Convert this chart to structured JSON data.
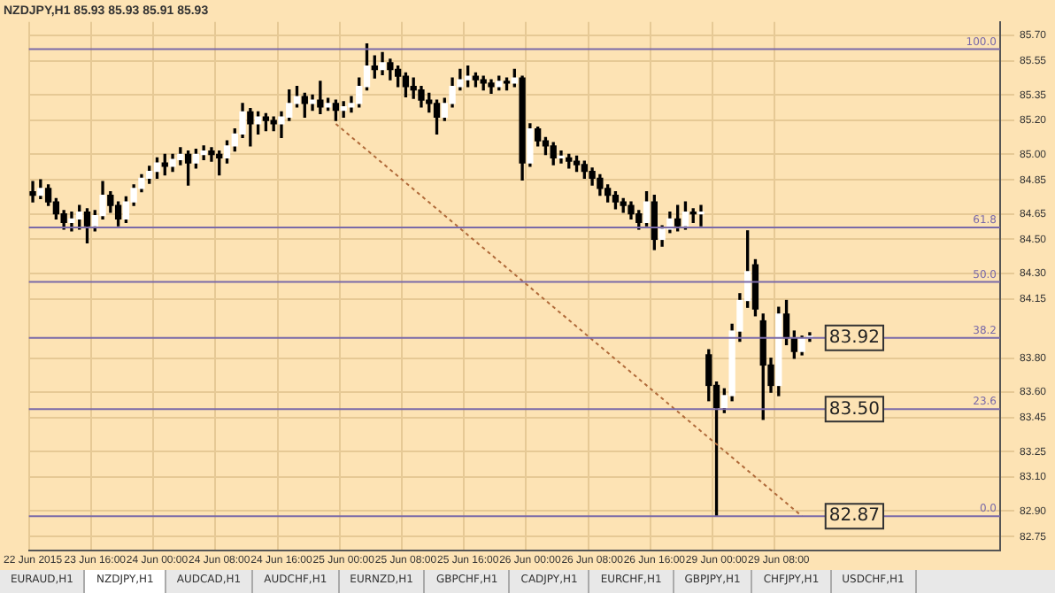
{
  "chart_data": {
    "type": "candlestick",
    "title": "NZDJPY,H1 85.93 85.93 85.91 85.93",
    "categories": [
      "22 Jun 2015",
      null,
      null,
      null,
      null,
      null,
      null,
      null,
      "23 Jun 16:00",
      null,
      null,
      null,
      null,
      null,
      null,
      null,
      "24 Jun 00:00",
      null,
      null,
      null,
      null,
      null,
      null,
      null,
      "24 Jun 08:00",
      null,
      null,
      null,
      null,
      null,
      null,
      null,
      "24 Jun 16:00",
      null,
      null,
      null,
      null,
      null,
      null,
      null,
      "25 Jun 00:00",
      null,
      null,
      null,
      null,
      null,
      null,
      null,
      "25 Jun 08:00",
      null,
      null,
      null,
      null,
      null,
      null,
      null,
      "25 Jun 16:00",
      null,
      null,
      null,
      null,
      null,
      null,
      null,
      "26 Jun 00:00",
      null,
      null,
      null,
      null,
      null,
      null,
      null,
      "26 Jun 08:00",
      null,
      null,
      null,
      null,
      null,
      null,
      null,
      "26 Jun 16:00",
      null,
      null,
      null,
      null,
      null,
      null,
      null,
      "29 Jun 00:00",
      null,
      null,
      null,
      null,
      null,
      null,
      null,
      "29 Jun 08:00",
      null,
      null,
      null,
      null,
      null,
      null,
      null,
      null,
      null,
      null,
      null,
      null,
      null,
      null,
      null,
      null,
      null,
      null,
      null,
      null,
      null,
      null,
      null,
      null,
      null,
      null,
      null,
      null
    ],
    "ohlc": [
      [
        84.78,
        84.84,
        84.72,
        84.76
      ],
      [
        84.76,
        84.85,
        84.74,
        84.8
      ],
      [
        84.8,
        84.82,
        84.7,
        84.72
      ],
      [
        84.72,
        84.74,
        84.62,
        84.65
      ],
      [
        84.65,
        84.67,
        84.56,
        84.6
      ],
      [
        84.6,
        84.66,
        84.55,
        84.62
      ],
      [
        84.62,
        84.7,
        84.56,
        84.66
      ],
      [
        84.66,
        84.68,
        84.48,
        84.58
      ],
      [
        84.58,
        84.67,
        84.55,
        84.64
      ],
      [
        84.64,
        84.84,
        84.62,
        84.76
      ],
      [
        84.76,
        84.78,
        84.66,
        84.7
      ],
      [
        84.7,
        84.72,
        84.58,
        84.62
      ],
      [
        84.62,
        84.75,
        84.6,
        84.72
      ],
      [
        84.72,
        84.82,
        84.7,
        84.8
      ],
      [
        84.8,
        84.88,
        84.78,
        84.86
      ],
      [
        84.86,
        84.93,
        84.83,
        84.9
      ],
      [
        84.9,
        84.98,
        84.86,
        84.95
      ],
      [
        84.95,
        85.0,
        84.88,
        84.93
      ],
      [
        84.93,
        85.0,
        84.9,
        84.97
      ],
      [
        84.97,
        85.04,
        84.94,
        85.0
      ],
      [
        85.0,
        85.02,
        84.82,
        84.95
      ],
      [
        84.95,
        85.03,
        84.92,
        85.0
      ],
      [
        85.0,
        85.05,
        84.97,
        85.02
      ],
      [
        85.02,
        85.04,
        84.96,
        85.0
      ],
      [
        85.0,
        85.02,
        84.88,
        84.98
      ],
      [
        84.98,
        85.08,
        84.95,
        85.05
      ],
      [
        85.05,
        85.15,
        85.02,
        85.12
      ],
      [
        85.12,
        85.3,
        85.1,
        85.25
      ],
      [
        85.25,
        85.27,
        85.05,
        85.18
      ],
      [
        85.18,
        85.25,
        85.12,
        85.22
      ],
      [
        85.22,
        85.24,
        85.14,
        85.2
      ],
      [
        85.2,
        85.22,
        85.14,
        85.18
      ],
      [
        85.18,
        85.25,
        85.1,
        85.22
      ],
      [
        85.22,
        85.38,
        85.2,
        85.3
      ],
      [
        85.3,
        85.4,
        85.28,
        85.34
      ],
      [
        85.34,
        85.36,
        85.22,
        85.3
      ],
      [
        85.3,
        85.35,
        85.26,
        85.32
      ],
      [
        85.32,
        85.43,
        85.24,
        85.28
      ],
      [
        85.28,
        85.33,
        85.26,
        85.3
      ],
      [
        85.3,
        85.32,
        85.2,
        85.26
      ],
      [
        85.26,
        85.31,
        85.22,
        85.28
      ],
      [
        85.28,
        85.34,
        85.25,
        85.3
      ],
      [
        85.3,
        85.45,
        85.28,
        85.4
      ],
      [
        85.4,
        85.65,
        85.38,
        85.52
      ],
      [
        85.52,
        85.58,
        85.45,
        85.5
      ],
      [
        85.5,
        85.6,
        85.47,
        85.54
      ],
      [
        85.54,
        85.56,
        85.44,
        85.5
      ],
      [
        85.5,
        85.52,
        85.4,
        85.46
      ],
      [
        85.46,
        85.48,
        85.34,
        85.4
      ],
      [
        85.4,
        85.45,
        85.33,
        85.38
      ],
      [
        85.38,
        85.4,
        85.28,
        85.32
      ],
      [
        85.32,
        85.36,
        85.25,
        85.3
      ],
      [
        85.3,
        85.32,
        85.12,
        85.22
      ],
      [
        85.22,
        85.33,
        85.2,
        85.3
      ],
      [
        85.3,
        85.45,
        85.28,
        85.4
      ],
      [
        85.4,
        85.5,
        85.38,
        85.44
      ],
      [
        85.44,
        85.52,
        85.4,
        85.46
      ],
      [
        85.46,
        85.48,
        85.4,
        85.44
      ],
      [
        85.44,
        85.46,
        85.38,
        85.42
      ],
      [
        85.42,
        85.44,
        85.36,
        85.4
      ],
      [
        85.4,
        85.46,
        85.38,
        85.43
      ],
      [
        85.43,
        85.45,
        85.38,
        85.42
      ],
      [
        85.42,
        85.5,
        85.4,
        85.45
      ],
      [
        85.45,
        85.46,
        84.85,
        84.95
      ],
      [
        84.95,
        85.18,
        84.93,
        85.15
      ],
      [
        85.15,
        85.16,
        85.05,
        85.08
      ],
      [
        85.08,
        85.1,
        85.0,
        85.05
      ],
      [
        85.05,
        85.07,
        84.94,
        84.98
      ],
      [
        84.98,
        85.02,
        84.95,
        84.99
      ],
      [
        84.98,
        85.0,
        84.92,
        84.96
      ],
      [
        84.96,
        84.99,
        84.9,
        84.94
      ],
      [
        84.94,
        84.96,
        84.86,
        84.9
      ],
      [
        84.9,
        84.92,
        84.82,
        84.86
      ],
      [
        84.86,
        84.88,
        84.76,
        84.8
      ],
      [
        84.8,
        84.82,
        84.72,
        84.76
      ],
      [
        84.76,
        84.78,
        84.68,
        84.72
      ],
      [
        84.72,
        84.74,
        84.66,
        84.7
      ],
      [
        84.7,
        84.72,
        84.62,
        84.65
      ],
      [
        84.65,
        84.67,
        84.56,
        84.6
      ],
      [
        84.6,
        84.78,
        84.58,
        84.72
      ],
      [
        84.72,
        84.76,
        84.44,
        84.5
      ],
      [
        84.5,
        84.58,
        84.46,
        84.56
      ],
      [
        84.56,
        84.66,
        84.54,
        84.62
      ],
      [
        84.62,
        84.7,
        84.55,
        84.58
      ],
      [
        84.58,
        84.72,
        84.56,
        84.66
      ],
      [
        84.66,
        84.68,
        84.6,
        84.65
      ],
      [
        84.65,
        84.7,
        84.58,
        84.66
      ],
      [
        83.82,
        83.85,
        83.55,
        83.64
      ],
      [
        83.64,
        83.66,
        82.87,
        83.51
      ],
      [
        83.51,
        83.62,
        83.48,
        83.58
      ],
      [
        83.58,
        84.0,
        83.55,
        83.96
      ],
      [
        83.96,
        84.18,
        83.9,
        84.14
      ],
      [
        84.14,
        84.55,
        84.1,
        84.31
      ],
      [
        84.35,
        84.38,
        84.05,
        84.09
      ],
      [
        84.02,
        84.06,
        83.44,
        83.76
      ],
      [
        83.76,
        83.8,
        83.6,
        83.64
      ],
      [
        83.64,
        84.1,
        83.58,
        84.06
      ],
      [
        84.06,
        84.14,
        83.88,
        83.92
      ],
      [
        83.92,
        83.96,
        83.8,
        83.84
      ],
      [
        83.84,
        83.93,
        83.82,
        83.92
      ],
      [
        83.92,
        83.95,
        83.9,
        83.93
      ],
      null,
      null,
      null,
      null,
      null,
      null,
      null,
      null,
      null,
      null,
      null,
      null,
      null,
      null,
      null,
      null,
      null,
      null,
      null,
      null,
      null,
      null,
      null,
      null
    ],
    "series": [
      {
        "type": "line",
        "color": "#b06a3a",
        "line_style": "dotted",
        "values": [
          null,
          null,
          null,
          null,
          null,
          null,
          null,
          null,
          null,
          null,
          null,
          null,
          null,
          null,
          null,
          null,
          null,
          null,
          null,
          null,
          null,
          null,
          null,
          null,
          null,
          null,
          null,
          null,
          null,
          null,
          null,
          null,
          null,
          null,
          null,
          null,
          null,
          null,
          null,
          85.18,
          null,
          null,
          null,
          null,
          null,
          null,
          null,
          null,
          null,
          null,
          null,
          null,
          null,
          null,
          null,
          null,
          null,
          null,
          null,
          null,
          null,
          null,
          null,
          null,
          null,
          null,
          null,
          null,
          null,
          null,
          null,
          null,
          null,
          null,
          null,
          null,
          null,
          null,
          null,
          null,
          null,
          null,
          null,
          null,
          null,
          null,
          null,
          null,
          null,
          null,
          null,
          null,
          null,
          null,
          null,
          null,
          null,
          null,
          null,
          82.87,
          null,
          null,
          null,
          null,
          null,
          null,
          null,
          null,
          null,
          null,
          null,
          null,
          null,
          null,
          null,
          null,
          null,
          null,
          null,
          null,
          null,
          null,
          null,
          null,
          null
        ]
      }
    ],
    "ylim": [
      82.67,
      85.78
    ],
    "yticks": [
      {
        "value": 85.7,
        "label": "85.70"
      },
      {
        "value": 85.55,
        "label": "85.55"
      },
      {
        "value": 85.35,
        "label": "85.35"
      },
      {
        "value": 85.2,
        "label": "85.20"
      },
      {
        "value": 85.0,
        "label": "85.00"
      },
      {
        "value": 84.85,
        "label": "84.85"
      },
      {
        "value": 84.65,
        "label": "84.65"
      },
      {
        "value": 84.5,
        "label": "84.50"
      },
      {
        "value": 84.3,
        "label": "84.30"
      },
      {
        "value": 84.15,
        "label": "84.15"
      },
      {
        "value": 83.8,
        "label": "83.80"
      },
      {
        "value": 83.6,
        "label": "83.60"
      },
      {
        "value": 83.45,
        "label": "83.45"
      },
      {
        "value": 83.25,
        "label": "83.25"
      },
      {
        "value": 83.1,
        "label": "83.10"
      },
      {
        "value": 82.9,
        "label": "82.90"
      },
      {
        "value": 82.75,
        "label": "82.75"
      }
    ],
    "grid": true,
    "ref_lines": [
      {
        "axis": "y",
        "value": 85.62,
        "color": "#7a6aa8"
      },
      {
        "axis": "y",
        "value": 84.57,
        "color": "#7a6aa8"
      },
      {
        "axis": "y",
        "value": 84.25,
        "color": "#7a6aa8"
      },
      {
        "axis": "y",
        "value": 83.92,
        "label": "83.92",
        "color": "#7a6aa8"
      },
      {
        "axis": "y",
        "value": 83.5,
        "label": "83.50",
        "color": "#7a6aa8"
      },
      {
        "axis": "y",
        "value": 82.87,
        "label": "82.87",
        "color": "#7a6aa8"
      }
    ],
    "annotations": [
      {
        "text": "100.0",
        "y": 85.62
      },
      {
        "text": "61.8",
        "y": 84.57
      },
      {
        "text": "50.0",
        "y": 84.25
      },
      {
        "text": "38.2",
        "y": 83.92
      },
      {
        "text": "23.6",
        "y": 83.5
      },
      {
        "text": "0.0",
        "y": 82.87
      },
      "EURAUD,H1",
      "NZDJPY,H1",
      "AUDCAD,H1",
      "AUDCHF,H1",
      "EURNZD,H1",
      "GBPCHF,H1",
      "CADJPY,H1",
      "EURCHF,H1",
      "GBPJPY,H1",
      "CHFJPY,H1",
      "USDCHF,H1"
    ]
  }
}
